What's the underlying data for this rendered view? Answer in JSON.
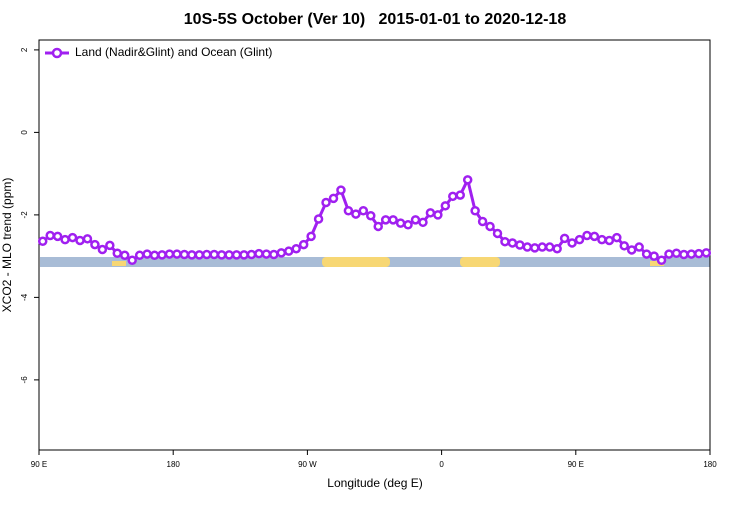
{
  "chart_data": {
    "type": "line",
    "title": "10S-5S October (Ver 10)   2015-01-01 to 2020-12-18",
    "x_label": "Longitude (deg E)",
    "y_label": "XCO2 - MLO trend (ppm)",
    "x": [
      92.5,
      97.5,
      102.5,
      107.5,
      112.5,
      117.5,
      122.5,
      127.5,
      132.5,
      137.5,
      142.5,
      147.5,
      152.5,
      157.5,
      162.5,
      167.5,
      172.5,
      177.5,
      182.5,
      187.5,
      192.5,
      197.5,
      202.5,
      207.5,
      212.5,
      217.5,
      222.5,
      227.5,
      232.5,
      237.5,
      242.5,
      247.5,
      252.5,
      257.5,
      262.5,
      267.5,
      272.5,
      277.5,
      282.5,
      287.5,
      292.5,
      297.5,
      302.5,
      307.5,
      312.5,
      317.5,
      322.5,
      327.5,
      332.5,
      337.5,
      342.5,
      347.5,
      352.5,
      357.5,
      362.5,
      367.5,
      372.5,
      377.5,
      382.5,
      387.5,
      392.5,
      397.5,
      402.5,
      407.5,
      412.5,
      417.5,
      422.5,
      427.5,
      432.5,
      437.5,
      442.5,
      447.5,
      452.5,
      457.5,
      462.5,
      467.5,
      472.5,
      477.5,
      482.5,
      487.5,
      492.5,
      497.5,
      502.5,
      507.5,
      512.5,
      517.5,
      522.5,
      527.5,
      532.5,
      537.5
    ],
    "series": [
      {
        "name": "Land (Nadir&Glint) and Ocean (Glint)",
        "color": "#a020f0",
        "values": [
          -2.64,
          -2.5,
          -2.52,
          -2.6,
          -2.55,
          -2.62,
          -2.58,
          -2.72,
          -2.84,
          -2.74,
          -2.93,
          -2.98,
          -3.1,
          -2.98,
          -2.95,
          -2.98,
          -2.97,
          -2.95,
          -2.95,
          -2.96,
          -2.97,
          -2.97,
          -2.96,
          -2.96,
          -2.97,
          -2.97,
          -2.97,
          -2.97,
          -2.96,
          -2.94,
          -2.95,
          -2.96,
          -2.92,
          -2.88,
          -2.82,
          -2.72,
          -2.52,
          -2.1,
          -1.7,
          -1.6,
          -1.4,
          -1.9,
          -1.98,
          -1.9,
          -2.02,
          -2.28,
          -2.12,
          -2.12,
          -2.2,
          -2.24,
          -2.12,
          -2.18,
          -1.95,
          -2.0,
          -1.78,
          -1.55,
          -1.52,
          -1.15,
          -1.9,
          -2.16,
          -2.28,
          -2.45,
          -2.65,
          -2.68,
          -2.73,
          -2.78,
          -2.8,
          -2.78,
          -2.78,
          -2.82,
          -2.57,
          -2.68,
          -2.6,
          -2.5,
          -2.52,
          -2.6,
          -2.62,
          -2.55,
          -2.75,
          -2.85,
          -2.78,
          -2.95,
          -3.0,
          -3.1,
          -2.95,
          -2.93,
          -2.96,
          -2.95,
          -2.94,
          -2.92
        ]
      }
    ],
    "xlim": [
      90,
      540
    ],
    "xticks": [
      {
        "value": 90,
        "label": "90 E"
      },
      180,
      {
        "value": 270,
        "label": "90 W"
      },
      {
        "value": 360,
        "label": "0"
      },
      {
        "value": 450,
        "label": "90 E"
      },
      {
        "value": 540,
        "label": "180"
      }
    ],
    "ylim": [
      -7.7,
      2.24
    ],
    "yticks": [
      2,
      0,
      -2,
      -4,
      -6
    ],
    "legend": "top-left"
  }
}
